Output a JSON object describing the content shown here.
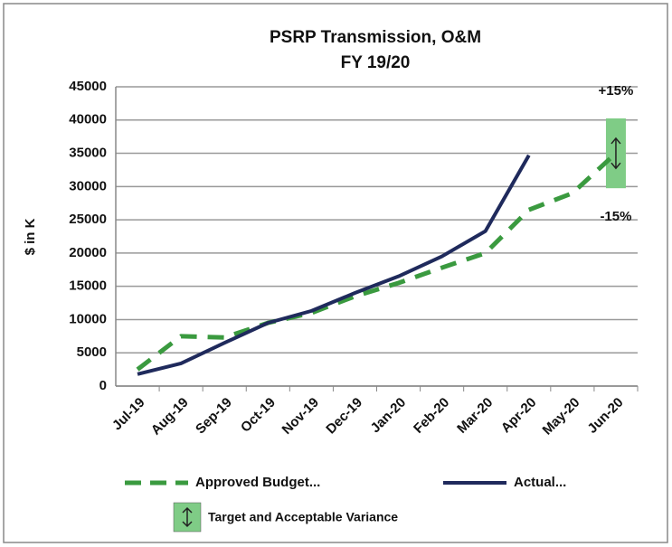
{
  "chart_data": {
    "type": "line",
    "title": [
      "PSRP Transmission, O&M",
      "FY 19/20"
    ],
    "y_label": "$ in K",
    "categories": [
      "Jul-19",
      "Aug-19",
      "Sep-19",
      "Oct-19",
      "Nov-19",
      "Dec-19",
      "Jan-20",
      "Feb-20",
      "Mar-20",
      "Apr-20",
      "May-20",
      "Jun-20"
    ],
    "series": [
      {
        "name": "Approved Budget...",
        "color": "#3a9a3f",
        "dashed": true,
        "values": [
          2500,
          7500,
          7300,
          9500,
          11000,
          13500,
          15500,
          17800,
          20000,
          26500,
          29000,
          35000
        ]
      },
      {
        "name": "Actual...",
        "color": "#1f2a5c",
        "dashed": false,
        "values": [
          1800,
          3400,
          6500,
          9500,
          11300,
          14000,
          16500,
          19500,
          23300,
          34700,
          null,
          null
        ]
      }
    ],
    "variance": {
      "name": "Target and Acceptable Variance",
      "color": "#7fcc86",
      "category_index": 11,
      "low": 29750,
      "high": 40250,
      "upper_label": "+15%",
      "lower_label": "-15%"
    },
    "ylim": [
      0,
      45000
    ],
    "yticks": [
      0,
      5000,
      10000,
      15000,
      20000,
      25000,
      30000,
      35000,
      40000,
      45000
    ],
    "grid": true
  }
}
